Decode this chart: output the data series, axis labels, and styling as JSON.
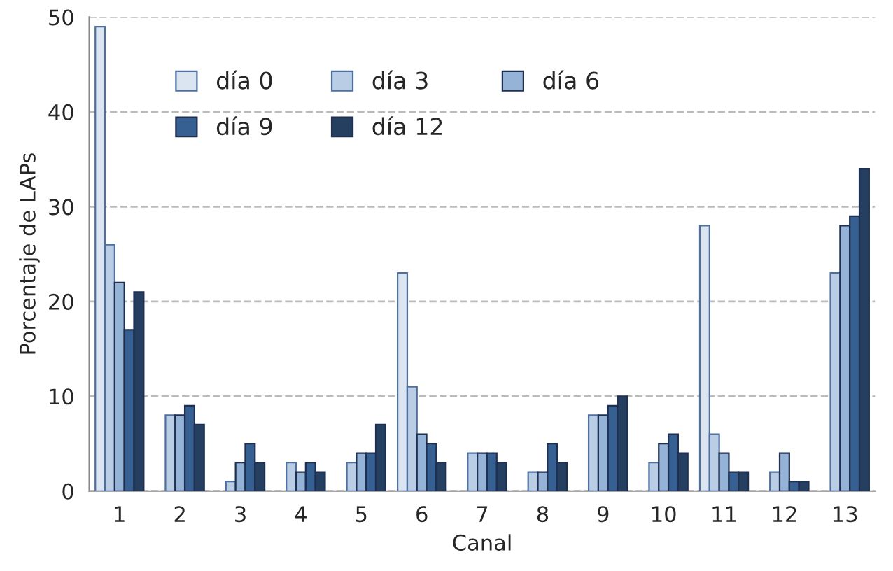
{
  "chart_data": {
    "type": "bar",
    "xlabel": "Canal",
    "ylabel": "Porcentaje de LAPs",
    "categories": [
      "1",
      "2",
      "3",
      "4",
      "5",
      "6",
      "7",
      "8",
      "9",
      "10",
      "11",
      "12",
      "13"
    ],
    "series": [
      {
        "name": "día 0",
        "color": "#dbe5f1",
        "values": [
          49,
          null,
          null,
          null,
          null,
          23,
          null,
          null,
          null,
          null,
          28,
          null,
          null
        ]
      },
      {
        "name": "día 3",
        "color": "#b9cde5",
        "values": [
          26,
          8,
          1,
          3,
          3,
          11,
          4,
          2,
          8,
          3,
          6,
          2,
          23
        ]
      },
      {
        "name": "día 6",
        "color": "#95b3d7",
        "values": [
          22,
          8,
          3,
          2,
          4,
          6,
          4,
          2,
          8,
          5,
          4,
          4,
          28
        ]
      },
      {
        "name": "día 9",
        "color": "#366092",
        "values": [
          17,
          9,
          5,
          3,
          4,
          5,
          4,
          5,
          9,
          6,
          2,
          1,
          29
        ]
      },
      {
        "name": "día 12",
        "color": "#243f60",
        "values": [
          21,
          7,
          3,
          2,
          7,
          3,
          3,
          3,
          10,
          4,
          2,
          1,
          34
        ]
      }
    ],
    "ylim": [
      0,
      50
    ],
    "yticks": [
      0,
      10,
      20,
      30,
      40,
      50
    ],
    "grid": "y",
    "legend": "top"
  }
}
